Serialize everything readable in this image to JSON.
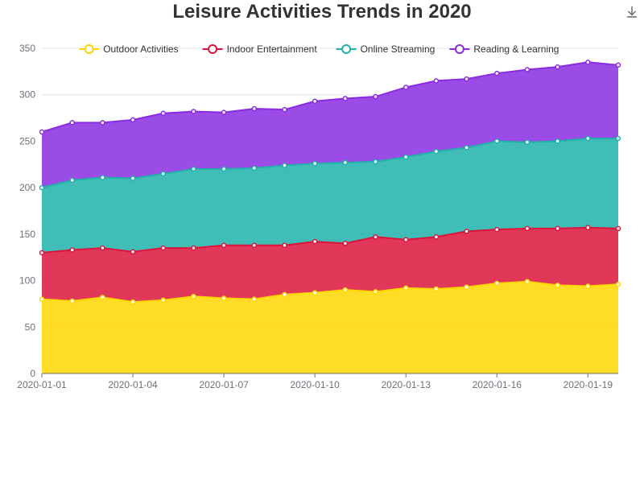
{
  "toolbar": {
    "download_icon": "download-icon"
  },
  "chart_data": {
    "type": "area",
    "stacked": true,
    "title": "Leisure Activities Trends in 2020",
    "xlabel": "",
    "ylabel": "",
    "ylim": [
      0,
      350
    ],
    "yticks": [
      0,
      50,
      100,
      150,
      200,
      250,
      300,
      350
    ],
    "x": [
      "2020-01-01",
      "2020-01-02",
      "2020-01-03",
      "2020-01-04",
      "2020-01-05",
      "2020-01-06",
      "2020-01-07",
      "2020-01-08",
      "2020-01-09",
      "2020-01-10",
      "2020-01-11",
      "2020-01-12",
      "2020-01-13",
      "2020-01-14",
      "2020-01-15",
      "2020-01-16",
      "2020-01-17",
      "2020-01-18",
      "2020-01-19",
      "2020-01-20"
    ],
    "x_tick_labels": [
      "2020-01-01",
      "2020-01-04",
      "2020-01-07",
      "2020-01-10",
      "2020-01-13",
      "2020-01-16",
      "2020-01-19"
    ],
    "grid": true,
    "legend_position": "top",
    "series": [
      {
        "name": "Outdoor Activities",
        "color": "#FFD700",
        "values": [
          80,
          78,
          82,
          77,
          79,
          83,
          81,
          80,
          85,
          87,
          90,
          88,
          92,
          91,
          93,
          97,
          99,
          95,
          94,
          96
        ]
      },
      {
        "name": "Indoor Entertainment",
        "color": "#DC143C",
        "values": [
          50,
          55,
          53,
          54,
          56,
          52,
          57,
          58,
          53,
          55,
          50,
          59,
          52,
          56,
          60,
          58,
          57,
          61,
          63,
          60
        ]
      },
      {
        "name": "Online Streaming",
        "color": "#20B2AA",
        "values": [
          70,
          75,
          76,
          79,
          80,
          85,
          82,
          83,
          86,
          84,
          87,
          81,
          89,
          92,
          90,
          95,
          93,
          94,
          96,
          97
        ]
      },
      {
        "name": "Reading & Learning",
        "color": "#8A2BE2",
        "values": [
          60,
          62,
          59,
          63,
          65,
          62,
          61,
          64,
          60,
          67,
          69,
          70,
          75,
          76,
          74,
          73,
          78,
          80,
          82,
          79
        ]
      }
    ]
  }
}
